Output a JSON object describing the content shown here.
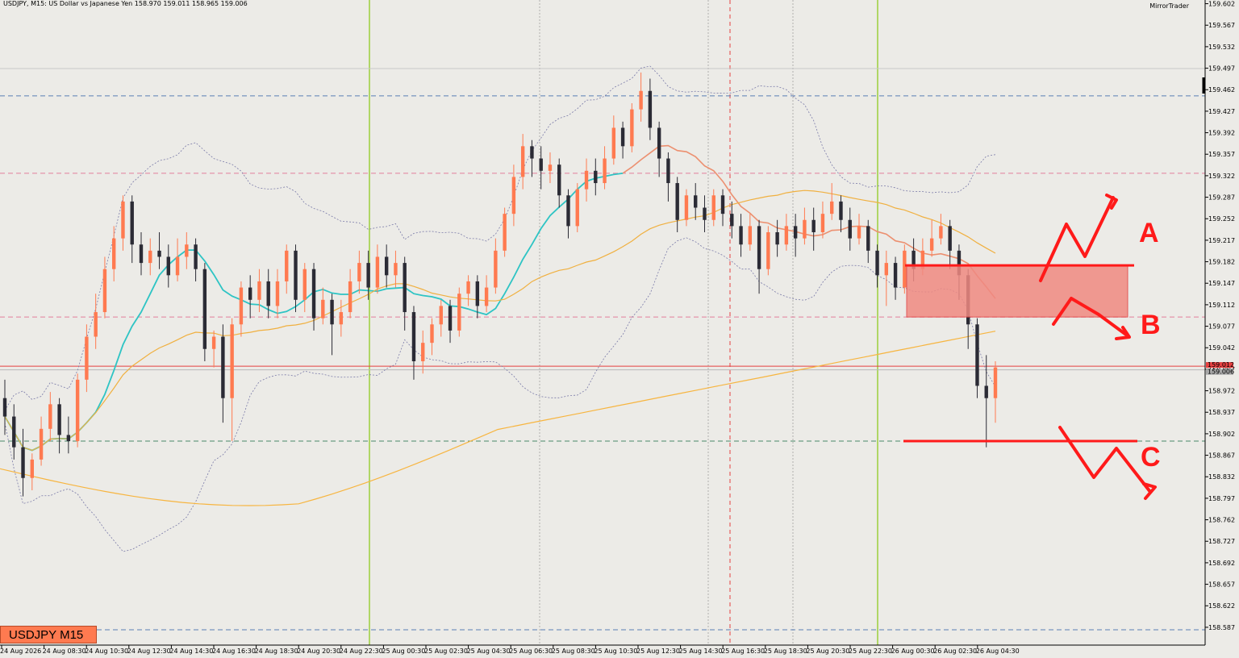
{
  "header": {
    "symbol_info": "USDJPY, M15:  US Dollar vs Japanese Yen  158.970 159.011 158.965 159.006",
    "brand": "MirrorTrader",
    "badge": "USDJPY M15"
  },
  "colors": {
    "background": "#ecebe7",
    "bull": "#ff7a50",
    "bear": "#2b2b35",
    "ma_fast": "#2ec4c4",
    "ma_slow_upper": "#f0b040",
    "ma_long": "#f7b540",
    "zone": "#f08a82",
    "annotation": "#ff1a1a"
  },
  "chart_data": {
    "type": "candlestick",
    "y_ticks": [
      "159.602",
      "159.567",
      "159.532",
      "159.497",
      "159.462",
      "159.427",
      "159.392",
      "159.357",
      "159.322",
      "159.287",
      "159.252",
      "159.217",
      "159.182",
      "159.147",
      "159.112",
      "159.077",
      "159.042",
      "159.007",
      "158.972",
      "158.937",
      "158.902",
      "158.867",
      "158.832",
      "158.797",
      "158.762",
      "158.727",
      "158.692",
      "158.657",
      "158.622",
      "158.587"
    ],
    "ylim": [
      158.558,
      159.608
    ],
    "x_labels": [
      "24 Aug 2026",
      "24 Aug 08:30",
      "24 Aug 10:30",
      "24 Aug 12:30",
      "24 Aug 14:30",
      "24 Aug 16:30",
      "24 Aug 18:30",
      "24 Aug 20:30",
      "24 Aug 22:30",
      "25 Aug 00:30",
      "25 Aug 02:30",
      "25 Aug 04:30",
      "25 Aug 06:30",
      "25 Aug 08:30",
      "25 Aug 10:30",
      "25 Aug 12:30",
      "25 Aug 14:30",
      "25 Aug 16:30",
      "25 Aug 18:30",
      "25 Aug 20:30",
      "25 Aug 22:30",
      "26 Aug 00:30",
      "26 Aug 02:30",
      "26 Aug 04:30"
    ],
    "price_labels": [
      {
        "text": "159.012",
        "color": "#e64040"
      },
      {
        "text": "159.006",
        "color": "#a8a8a8"
      }
    ],
    "horizontal_levels": [
      {
        "price": 159.452,
        "color": "#5a7fb5",
        "style": "dashed"
      },
      {
        "price": 159.326,
        "color": "#e27d9b",
        "style": "dashed"
      },
      {
        "price": 159.092,
        "color": "#e27d9b",
        "style": "dashed"
      },
      {
        "price": 159.012,
        "color": "#e64040",
        "style": "solid"
      },
      {
        "price": 159.006,
        "color": "#b8b8b8",
        "style": "solid"
      },
      {
        "price": 158.89,
        "color": "#4a8a6a",
        "style": "dashed"
      },
      {
        "price": 158.583,
        "color": "#5a7fb5",
        "style": "dashed"
      }
    ],
    "candles": [
      [
        158.96,
        158.93,
        158.99,
        158.9
      ],
      [
        158.93,
        158.88,
        158.95,
        158.86
      ],
      [
        158.88,
        158.83,
        158.91,
        158.8
      ],
      [
        158.83,
        158.86,
        158.87,
        158.81
      ],
      [
        158.86,
        158.91,
        158.93,
        158.85
      ],
      [
        158.91,
        158.95,
        158.97,
        158.89
      ],
      [
        158.95,
        158.9,
        158.96,
        158.87
      ],
      [
        158.9,
        158.89,
        158.93,
        158.87
      ],
      [
        158.89,
        158.99,
        159.0,
        158.88
      ],
      [
        158.99,
        159.06,
        159.08,
        158.97
      ],
      [
        159.06,
        159.1,
        159.13,
        159.04
      ],
      [
        159.1,
        159.17,
        159.19,
        159.09
      ],
      [
        159.17,
        159.22,
        159.24,
        159.15
      ],
      [
        159.22,
        159.28,
        159.29,
        159.2
      ],
      [
        159.28,
        159.21,
        159.29,
        159.18
      ],
      [
        159.21,
        159.18,
        159.23,
        159.16
      ],
      [
        159.18,
        159.2,
        159.22,
        159.16
      ],
      [
        159.2,
        159.19,
        159.23,
        159.17
      ],
      [
        159.19,
        159.16,
        159.21,
        159.14
      ],
      [
        159.16,
        159.19,
        159.22,
        159.15
      ],
      [
        159.19,
        159.21,
        159.23,
        159.17
      ],
      [
        159.21,
        159.17,
        159.22,
        159.15
      ],
      [
        159.17,
        159.04,
        159.18,
        159.02
      ],
      [
        159.04,
        159.06,
        159.07,
        159.01
      ],
      [
        159.06,
        158.96,
        159.08,
        158.92
      ],
      [
        158.96,
        159.08,
        159.09,
        158.89
      ],
      [
        159.08,
        159.14,
        159.15,
        159.06
      ],
      [
        159.14,
        159.12,
        159.16,
        159.09
      ],
      [
        159.12,
        159.15,
        159.17,
        159.1
      ],
      [
        159.15,
        159.11,
        159.17,
        159.09
      ],
      [
        159.11,
        159.15,
        159.17,
        159.09
      ],
      [
        159.15,
        159.2,
        159.21,
        159.13
      ],
      [
        159.2,
        159.12,
        159.21,
        159.1
      ],
      [
        159.12,
        159.17,
        159.18,
        159.1
      ],
      [
        159.17,
        159.09,
        159.18,
        159.07
      ],
      [
        159.09,
        159.12,
        159.14,
        159.08
      ],
      [
        159.12,
        159.08,
        159.13,
        159.03
      ],
      [
        159.08,
        159.1,
        159.12,
        159.06
      ],
      [
        159.1,
        159.15,
        159.17,
        159.09
      ],
      [
        159.15,
        159.18,
        159.2,
        159.13
      ],
      [
        159.18,
        159.14,
        159.2,
        159.12
      ],
      [
        159.14,
        159.19,
        159.21,
        159.13
      ],
      [
        159.19,
        159.16,
        159.21,
        159.14
      ],
      [
        159.16,
        159.18,
        159.2,
        159.14
      ],
      [
        159.18,
        159.1,
        159.19,
        159.07
      ],
      [
        159.1,
        159.02,
        159.11,
        158.99
      ],
      [
        159.02,
        159.05,
        159.07,
        159.0
      ],
      [
        159.05,
        159.08,
        159.09,
        159.03
      ],
      [
        159.08,
        159.11,
        159.12,
        159.06
      ],
      [
        159.11,
        159.07,
        159.12,
        159.05
      ],
      [
        159.07,
        159.13,
        159.14,
        159.06
      ],
      [
        159.13,
        159.15,
        159.16,
        159.11
      ],
      [
        159.15,
        159.11,
        159.16,
        159.09
      ],
      [
        159.11,
        159.14,
        159.16,
        159.1
      ],
      [
        159.14,
        159.2,
        159.22,
        159.13
      ],
      [
        159.2,
        159.26,
        159.27,
        159.19
      ],
      [
        159.26,
        159.32,
        159.34,
        159.24
      ],
      [
        159.32,
        159.37,
        159.39,
        159.3
      ],
      [
        159.37,
        159.35,
        159.38,
        159.32
      ],
      [
        159.35,
        159.33,
        159.37,
        159.3
      ],
      [
        159.33,
        159.34,
        159.36,
        159.31
      ],
      [
        159.34,
        159.29,
        159.35,
        159.27
      ],
      [
        159.29,
        159.24,
        159.3,
        159.22
      ],
      [
        159.24,
        159.3,
        159.31,
        159.23
      ],
      [
        159.3,
        159.33,
        159.35,
        159.28
      ],
      [
        159.33,
        159.31,
        159.35,
        159.29
      ],
      [
        159.31,
        159.35,
        159.37,
        159.3
      ],
      [
        159.35,
        159.4,
        159.42,
        159.34
      ],
      [
        159.4,
        159.37,
        159.41,
        159.35
      ],
      [
        159.37,
        159.43,
        159.44,
        159.36
      ],
      [
        159.43,
        159.46,
        159.49,
        159.41
      ],
      [
        159.46,
        159.4,
        159.48,
        159.38
      ],
      [
        159.4,
        159.35,
        159.41,
        159.32
      ],
      [
        159.35,
        159.31,
        159.36,
        159.28
      ],
      [
        159.31,
        159.25,
        159.32,
        159.23
      ],
      [
        159.25,
        159.29,
        159.3,
        159.24
      ],
      [
        159.29,
        159.27,
        159.31,
        159.25
      ],
      [
        159.27,
        159.25,
        159.29,
        159.23
      ],
      [
        159.25,
        159.29,
        159.3,
        159.24
      ],
      [
        159.29,
        159.26,
        159.3,
        159.24
      ],
      [
        159.26,
        159.24,
        159.28,
        159.22
      ],
      [
        159.24,
        159.21,
        159.26,
        159.19
      ],
      [
        159.21,
        159.24,
        159.26,
        159.2
      ],
      [
        159.24,
        159.17,
        159.25,
        159.13
      ],
      [
        159.17,
        159.23,
        159.24,
        159.16
      ],
      [
        159.23,
        159.21,
        159.25,
        159.19
      ],
      [
        159.21,
        159.24,
        159.26,
        159.2
      ],
      [
        159.24,
        159.22,
        159.26,
        159.19
      ],
      [
        159.22,
        159.25,
        159.27,
        159.21
      ],
      [
        159.25,
        159.23,
        159.27,
        159.2
      ],
      [
        159.23,
        159.26,
        159.28,
        159.22
      ],
      [
        159.26,
        159.28,
        159.31,
        159.25
      ],
      [
        159.28,
        159.25,
        159.29,
        159.23
      ],
      [
        159.25,
        159.22,
        159.27,
        159.2
      ],
      [
        159.22,
        159.24,
        159.26,
        159.21
      ],
      [
        159.24,
        159.2,
        159.25,
        159.18
      ],
      [
        159.2,
        159.16,
        159.21,
        159.14
      ],
      [
        159.16,
        159.18,
        159.2,
        159.11
      ],
      [
        159.18,
        159.14,
        159.19,
        159.12
      ],
      [
        159.14,
        159.2,
        159.21,
        159.13
      ],
      [
        159.2,
        159.17,
        159.22,
        159.15
      ],
      [
        159.17,
        159.2,
        159.22,
        159.16
      ],
      [
        159.2,
        159.22,
        159.25,
        159.19
      ],
      [
        159.22,
        159.24,
        159.26,
        159.21
      ],
      [
        159.24,
        159.2,
        159.25,
        159.17
      ],
      [
        159.2,
        159.16,
        159.21,
        159.12
      ],
      [
        159.16,
        159.08,
        159.17,
        159.04
      ],
      [
        159.08,
        158.98,
        159.09,
        158.96
      ],
      [
        158.98,
        158.96,
        159.03,
        158.88
      ],
      [
        158.96,
        159.01,
        159.02,
        158.92
      ]
    ]
  },
  "annotations": {
    "labels": [
      "A",
      "B",
      "C"
    ]
  }
}
